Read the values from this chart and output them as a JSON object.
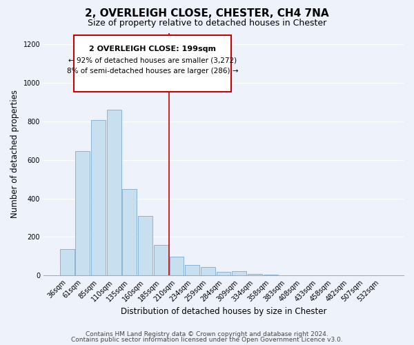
{
  "title": "2, OVERLEIGH CLOSE, CHESTER, CH4 7NA",
  "subtitle": "Size of property relative to detached houses in Chester",
  "xlabel": "Distribution of detached houses by size in Chester",
  "ylabel": "Number of detached properties",
  "bar_color": "#c8dff0",
  "bar_edge_color": "#8ab4d4",
  "categories": [
    "36sqm",
    "61sqm",
    "85sqm",
    "110sqm",
    "135sqm",
    "160sqm",
    "185sqm",
    "210sqm",
    "234sqm",
    "259sqm",
    "284sqm",
    "309sqm",
    "334sqm",
    "358sqm",
    "383sqm",
    "408sqm",
    "433sqm",
    "458sqm",
    "482sqm",
    "507sqm",
    "532sqm"
  ],
  "values": [
    135,
    645,
    808,
    862,
    447,
    310,
    158,
    97,
    55,
    43,
    18,
    22,
    8,
    3,
    0,
    0,
    0,
    0,
    0,
    0,
    0
  ],
  "annotation_title": "2 OVERLEIGH CLOSE: 199sqm",
  "annotation_line1": "← 92% of detached houses are smaller (3,272)",
  "annotation_line2": "8% of semi-detached houses are larger (286) →",
  "annotation_box_color": "#ffffff",
  "annotation_box_edge_color": "#cc0000",
  "marker_line_color": "#cc0000",
  "ylim": [
    0,
    1260
  ],
  "yticks": [
    0,
    200,
    400,
    600,
    800,
    1000,
    1200
  ],
  "footer_line1": "Contains HM Land Registry data © Crown copyright and database right 2024.",
  "footer_line2": "Contains public sector information licensed under the Open Government Licence v3.0.",
  "background_color": "#eef2fb",
  "grid_color": "#ffffff",
  "title_fontsize": 11,
  "subtitle_fontsize": 9,
  "label_fontsize": 8.5,
  "tick_fontsize": 7,
  "footer_fontsize": 6.5
}
